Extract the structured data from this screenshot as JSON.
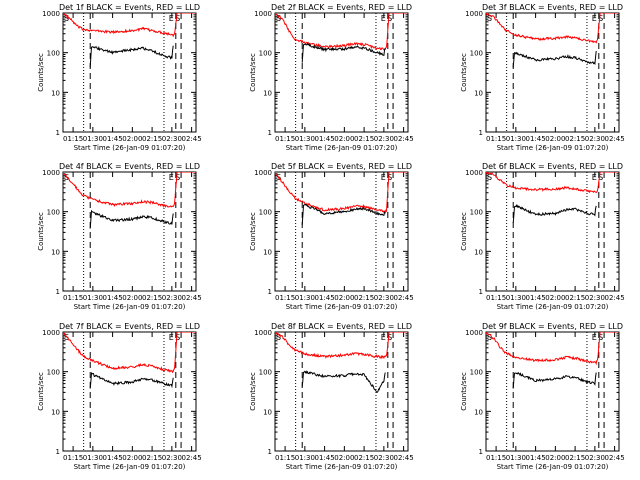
{
  "chart_data": [
    {
      "type": "line",
      "title": "Det 1f BLACK = Events, RED = LLD",
      "xlabel": "Start Time (26-Jan-09 01:07:20)",
      "ylabel": "Counts/sec",
      "y_scale": "log",
      "ylim": [
        1,
        1000
      ],
      "xlim_minutes_after_start": [
        0,
        101
      ],
      "x_tick_labels": [
        "01:15",
        "01:30",
        "01:45",
        "02:00",
        "02:15",
        "02:30",
        "02:45"
      ],
      "y_tick_labels": [
        "1",
        "10",
        "100",
        "1000"
      ],
      "annotations": [
        "S",
        "E",
        "S"
      ],
      "vertical_lines": {
        "dotted": [
          "01:23",
          "02:24"
        ],
        "dashed": [
          "01:28",
          "02:33",
          "02:37"
        ]
      },
      "series": [
        {
          "color": "#ff0000",
          "x": [
            "01:07",
            "01:13",
            "01:18",
            "01:22",
            "01:26",
            "01:30",
            "01:45",
            "02:00",
            "02:08",
            "02:15",
            "02:25",
            "02:31",
            "02:32",
            "02:34",
            "02:40",
            "02:48"
          ],
          "values": [
            1000,
            700,
            470,
            390,
            380,
            360,
            330,
            360,
            400,
            360,
            310,
            280,
            300,
            1000,
            1000,
            1000
          ]
        },
        {
          "color": "#000000",
          "x": [
            "01:28",
            "01:29",
            "01:30",
            "01:45",
            "02:00",
            "02:08",
            "02:15",
            "02:25",
            "02:30",
            "02:31"
          ],
          "values": [
            45,
            130,
            140,
            100,
            120,
            130,
            110,
            80,
            75,
            150
          ]
        }
      ]
    },
    {
      "type": "line",
      "title": "Det 2f BLACK = Events, RED = LLD",
      "xlabel": "Start Time (26-Jan-09 01:07:20)",
      "ylabel": "Counts/sec",
      "y_scale": "log",
      "ylim": [
        1,
        1000
      ],
      "xlim_minutes_after_start": [
        0,
        101
      ],
      "x_tick_labels": [
        "01:15",
        "01:30",
        "01:45",
        "02:00",
        "02:15",
        "02:30",
        "02:45"
      ],
      "y_tick_labels": [
        "1",
        "10",
        "100",
        "1000"
      ],
      "annotations": [
        "S",
        "E",
        "S"
      ],
      "vertical_lines": {
        "dotted": [
          "01:23",
          "02:24"
        ],
        "dashed": [
          "01:28",
          "02:33",
          "02:37"
        ]
      },
      "series": [
        {
          "color": "#ff0000",
          "x": [
            "01:07",
            "01:13",
            "01:18",
            "01:22",
            "01:26",
            "01:30",
            "01:45",
            "02:00",
            "02:08",
            "02:15",
            "02:25",
            "02:31",
            "02:32",
            "02:34",
            "02:40",
            "02:48"
          ],
          "values": [
            1000,
            700,
            350,
            230,
            200,
            180,
            140,
            150,
            170,
            160,
            130,
            125,
            140,
            1000,
            1000,
            1000
          ]
        },
        {
          "color": "#000000",
          "x": [
            "01:28",
            "01:29",
            "01:30",
            "01:45",
            "02:00",
            "02:08",
            "02:15",
            "02:25",
            "02:30",
            "02:31"
          ],
          "values": [
            60,
            150,
            165,
            120,
            125,
            140,
            130,
            100,
            90,
            130
          ]
        }
      ]
    },
    {
      "type": "line",
      "title": "Det 3f BLACK = Events, RED = LLD",
      "xlabel": "Start Time (26-Jan-09 01:07:20)",
      "ylabel": "Counts/sec",
      "y_scale": "log",
      "ylim": [
        1,
        1000
      ],
      "xlim_minutes_after_start": [
        0,
        101
      ],
      "x_tick_labels": [
        "01:15",
        "01:30",
        "01:45",
        "02:00",
        "02:15",
        "02:30",
        "02:45"
      ],
      "y_tick_labels": [
        "1",
        "10",
        "100",
        "1000"
      ],
      "annotations": [
        "S",
        "E",
        "S"
      ],
      "vertical_lines": {
        "dotted": [
          "01:23",
          "02:24"
        ],
        "dashed": [
          "01:28",
          "02:33",
          "02:37"
        ]
      },
      "series": [
        {
          "color": "#ff0000",
          "x": [
            "01:07",
            "01:13",
            "01:18",
            "01:22",
            "01:26",
            "01:30",
            "01:45",
            "02:00",
            "02:08",
            "02:15",
            "02:25",
            "02:31",
            "02:32",
            "02:34",
            "02:40",
            "02:48"
          ],
          "values": [
            1000,
            800,
            520,
            370,
            320,
            280,
            220,
            230,
            250,
            240,
            200,
            190,
            210,
            1000,
            1000,
            1000
          ]
        },
        {
          "color": "#000000",
          "x": [
            "01:28",
            "01:29",
            "01:30",
            "01:45",
            "02:00",
            "02:08",
            "02:15",
            "02:25",
            "02:30",
            "02:31"
          ],
          "values": [
            45,
            95,
            100,
            65,
            70,
            80,
            75,
            55,
            55,
            110
          ]
        }
      ]
    },
    {
      "type": "line",
      "title": "Det 4f BLACK = Events, RED = LLD",
      "xlabel": "Start Time (26-Jan-09 01:07:20)",
      "ylabel": "Counts/sec",
      "y_scale": "log",
      "ylim": [
        1,
        1000
      ],
      "xlim_minutes_after_start": [
        0,
        101
      ],
      "x_tick_labels": [
        "01:15",
        "01:30",
        "01:45",
        "02:00",
        "02:15",
        "02:30",
        "02:45"
      ],
      "y_tick_labels": [
        "1",
        "10",
        "100",
        "1000"
      ],
      "annotations": [
        "S",
        "E",
        "S"
      ],
      "vertical_lines": {
        "dotted": [
          "01:23",
          "02:24"
        ],
        "dashed": [
          "01:28",
          "02:33",
          "02:37"
        ]
      },
      "series": [
        {
          "color": "#ff0000",
          "x": [
            "01:07",
            "01:13",
            "01:18",
            "01:22",
            "01:26",
            "01:30",
            "01:45",
            "02:00",
            "02:08",
            "02:15",
            "02:25",
            "02:31",
            "02:32",
            "02:34",
            "02:40",
            "02:48"
          ],
          "values": [
            1000,
            600,
            380,
            270,
            230,
            200,
            150,
            160,
            180,
            170,
            140,
            130,
            150,
            1000,
            1000,
            1000
          ]
        },
        {
          "color": "#000000",
          "x": [
            "01:28",
            "01:29",
            "01:30",
            "01:45",
            "02:00",
            "02:08",
            "02:15",
            "02:25",
            "02:30",
            "02:31"
          ],
          "values": [
            40,
            100,
            95,
            60,
            65,
            75,
            70,
            55,
            50,
            90
          ]
        }
      ]
    },
    {
      "type": "line",
      "title": "Det 5f BLACK = Events, RED = LLD",
      "xlabel": "Start Time (26-Jan-09 01:07:20)",
      "ylabel": "Counts/sec",
      "y_scale": "log",
      "ylim": [
        1,
        1000
      ],
      "xlim_minutes_after_start": [
        0,
        101
      ],
      "x_tick_labels": [
        "01:15",
        "01:30",
        "01:45",
        "02:00",
        "02:15",
        "02:30",
        "02:45"
      ],
      "y_tick_labels": [
        "1",
        "10",
        "100",
        "1000"
      ],
      "annotations": [
        "S",
        "E",
        "S"
      ],
      "vertical_lines": {
        "dotted": [
          "01:23",
          "02:24"
        ],
        "dashed": [
          "01:28",
          "02:33",
          "02:37"
        ]
      },
      "series": [
        {
          "color": "#ff0000",
          "x": [
            "01:07",
            "01:13",
            "01:18",
            "01:22",
            "01:26",
            "01:30",
            "01:45",
            "02:00",
            "02:08",
            "02:15",
            "02:25",
            "02:31",
            "02:32",
            "02:34",
            "02:40",
            "02:48"
          ],
          "values": [
            1000,
            550,
            330,
            230,
            190,
            160,
            110,
            120,
            140,
            135,
            110,
            100,
            110,
            1000,
            1000,
            1000
          ]
        },
        {
          "color": "#000000",
          "x": [
            "01:28",
            "01:29",
            "01:30",
            "01:45",
            "02:00",
            "02:08",
            "02:15",
            "02:25",
            "02:30",
            "02:31"
          ],
          "values": [
            50,
            140,
            150,
            90,
            100,
            115,
            120,
            90,
            85,
            100
          ]
        }
      ]
    },
    {
      "type": "line",
      "title": "Det 6f BLACK = Events, RED = LLD",
      "xlabel": "Start Time (26-Jan-09 01:07:20)",
      "ylabel": "Counts/sec",
      "y_scale": "log",
      "ylim": [
        1,
        1000
      ],
      "xlim_minutes_after_start": [
        0,
        101
      ],
      "x_tick_labels": [
        "01:15",
        "01:30",
        "01:45",
        "02:00",
        "02:15",
        "02:30",
        "02:45"
      ],
      "y_tick_labels": [
        "1",
        "10",
        "100",
        "1000"
      ],
      "annotations": [
        "S",
        "E",
        "S"
      ],
      "vertical_lines": {
        "dotted": [
          "01:23",
          "02:24"
        ],
        "dashed": [
          "01:28",
          "02:33",
          "02:37"
        ]
      },
      "series": [
        {
          "color": "#ff0000",
          "x": [
            "01:07",
            "01:13",
            "01:18",
            "01:22",
            "01:26",
            "01:30",
            "01:45",
            "02:00",
            "02:08",
            "02:15",
            "02:25",
            "02:31",
            "02:32",
            "02:34",
            "02:40",
            "02:48"
          ],
          "values": [
            1000,
            850,
            620,
            480,
            430,
            400,
            360,
            370,
            400,
            380,
            330,
            310,
            330,
            1000,
            1000,
            1000
          ]
        },
        {
          "color": "#000000",
          "x": [
            "01:28",
            "01:29",
            "01:30",
            "01:45",
            "02:00",
            "02:08",
            "02:15",
            "02:25",
            "02:30",
            "02:31"
          ],
          "values": [
            55,
            130,
            140,
            85,
            90,
            110,
            115,
            90,
            85,
            140
          ]
        }
      ]
    },
    {
      "type": "line",
      "title": "Det 7f BLACK = Events, RED = LLD",
      "xlabel": "Start Time (26-Jan-09 01:07:20)",
      "ylabel": "Counts/sec",
      "y_scale": "log",
      "ylim": [
        1,
        1000
      ],
      "xlim_minutes_after_start": [
        0,
        101
      ],
      "x_tick_labels": [
        "01:15",
        "01:30",
        "01:45",
        "02:00",
        "02:15",
        "02:30",
        "02:45"
      ],
      "y_tick_labels": [
        "1",
        "10",
        "100",
        "1000"
      ],
      "annotations": [
        "S",
        "E",
        "S"
      ],
      "vertical_lines": {
        "dotted": [
          "01:23",
          "02:24"
        ],
        "dashed": [
          "01:28",
          "02:33",
          "02:37"
        ]
      },
      "series": [
        {
          "color": "#ff0000",
          "x": [
            "01:07",
            "01:13",
            "01:18",
            "01:22",
            "01:26",
            "01:30",
            "01:45",
            "02:00",
            "02:08",
            "02:15",
            "02:25",
            "02:31",
            "02:32",
            "02:34",
            "02:40",
            "02:48"
          ],
          "values": [
            1000,
            600,
            370,
            260,
            220,
            190,
            120,
            130,
            150,
            140,
            110,
            100,
            120,
            1000,
            1000,
            1000
          ]
        },
        {
          "color": "#000000",
          "x": [
            "01:28",
            "01:29",
            "01:30",
            "01:45",
            "02:00",
            "02:08",
            "02:15",
            "02:25",
            "02:30",
            "02:31"
          ],
          "values": [
            40,
            90,
            85,
            50,
            55,
            65,
            62,
            48,
            45,
            70
          ]
        }
      ]
    },
    {
      "type": "line",
      "title": "Det 8f BLACK = Events, RED = LLD",
      "xlabel": "Start Time (26-Jan-09 01:07:20)",
      "ylabel": "Counts/sec",
      "y_scale": "log",
      "ylim": [
        1,
        1000
      ],
      "xlim_minutes_after_start": [
        0,
        101
      ],
      "x_tick_labels": [
        "01:15",
        "01:30",
        "01:45",
        "02:00",
        "02:15",
        "02:30",
        "02:45"
      ],
      "y_tick_labels": [
        "1",
        "10",
        "100",
        "1000"
      ],
      "annotations": [
        "S",
        "E",
        "S"
      ],
      "vertical_lines": {
        "dotted": [
          "01:23",
          "02:24"
        ],
        "dashed": [
          "01:28",
          "02:33",
          "02:37"
        ]
      },
      "series": [
        {
          "color": "#ff0000",
          "x": [
            "01:07",
            "01:13",
            "01:18",
            "01:22",
            "01:26",
            "01:30",
            "01:45",
            "02:00",
            "02:08",
            "02:15",
            "02:25",
            "02:31",
            "02:32",
            "02:34",
            "02:40",
            "02:48"
          ],
          "values": [
            1000,
            750,
            470,
            360,
            320,
            280,
            240,
            260,
            290,
            270,
            240,
            230,
            250,
            1000,
            1000,
            1000
          ]
        },
        {
          "color": "#000000",
          "x": [
            "01:28",
            "01:29",
            "01:30",
            "01:45",
            "02:00",
            "02:08",
            "02:15",
            "02:25",
            "02:30",
            "02:31"
          ],
          "values": [
            45,
            95,
            100,
            75,
            80,
            90,
            85,
            30,
            60,
            95
          ]
        }
      ]
    },
    {
      "type": "line",
      "title": "Det 9f BLACK = Events, RED = LLD",
      "xlabel": "Start Time (26-Jan-09 01:07:20)",
      "ylabel": "Counts/sec",
      "y_scale": "log",
      "ylim": [
        1,
        1000
      ],
      "xlim_minutes_after_start": [
        0,
        101
      ],
      "x_tick_labels": [
        "01:15",
        "01:30",
        "01:45",
        "02:00",
        "02:15",
        "02:30",
        "02:45"
      ],
      "y_tick_labels": [
        "1",
        "10",
        "100",
        "1000"
      ],
      "annotations": [
        "S",
        "E",
        "S"
      ],
      "vertical_lines": {
        "dotted": [
          "01:23",
          "02:24"
        ],
        "dashed": [
          "01:28",
          "02:33",
          "02:37"
        ]
      },
      "series": [
        {
          "color": "#ff0000",
          "x": [
            "01:07",
            "01:13",
            "01:18",
            "01:22",
            "01:26",
            "01:30",
            "01:45",
            "02:00",
            "02:08",
            "02:15",
            "02:25",
            "02:31",
            "02:32",
            "02:34",
            "02:40",
            "02:48"
          ],
          "values": [
            1000,
            700,
            420,
            300,
            260,
            230,
            190,
            200,
            230,
            220,
            180,
            170,
            190,
            1000,
            1000,
            1000
          ]
        },
        {
          "color": "#000000",
          "x": [
            "01:28",
            "01:29",
            "01:30",
            "01:45",
            "02:00",
            "02:08",
            "02:15",
            "02:25",
            "02:30",
            "02:31"
          ],
          "values": [
            40,
            90,
            95,
            60,
            65,
            75,
            70,
            55,
            50,
            95
          ]
        }
      ]
    }
  ]
}
